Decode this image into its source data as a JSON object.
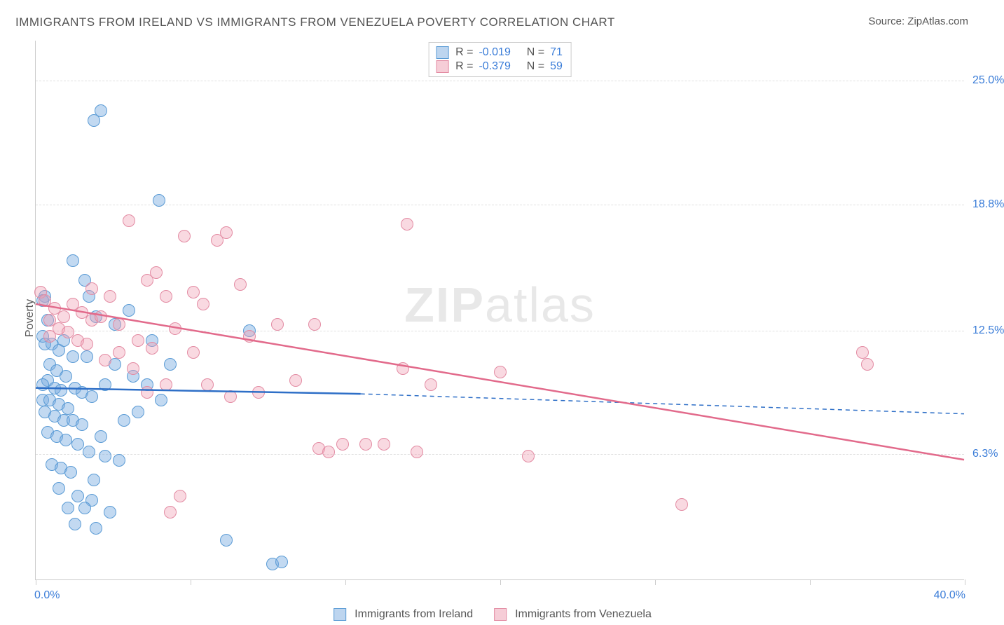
{
  "title": "IMMIGRANTS FROM IRELAND VS IMMIGRANTS FROM VENEZUELA POVERTY CORRELATION CHART",
  "source": "Source: ZipAtlas.com",
  "ylabel": "Poverty",
  "xaxis": {
    "min_label": "0.0%",
    "max_label": "40.0%",
    "min": 0,
    "max": 40
  },
  "yaxis": {
    "ticks": [
      {
        "v": 25.0,
        "label": "25.0%"
      },
      {
        "v": 18.8,
        "label": "18.8%"
      },
      {
        "v": 12.5,
        "label": "12.5%"
      },
      {
        "v": 6.3,
        "label": "6.3%"
      }
    ],
    "min": 0,
    "max": 27
  },
  "xtick_positions": [
    0,
    6.67,
    13.33,
    20,
    26.67,
    33.33,
    40
  ],
  "watermark": {
    "bold": "ZIP",
    "rest": "atlas"
  },
  "series": {
    "ireland": {
      "label": "Immigrants from Ireland",
      "color_fill": "rgba(120,170,225,0.45)",
      "color_stroke": "#5a9bd5",
      "swatch_fill": "#bdd5ef",
      "swatch_border": "#5a9bd5",
      "R": "-0.019",
      "N": "71",
      "regression": {
        "x1": 0,
        "y1": 9.6,
        "x2": 14,
        "y2": 9.3,
        "x2_dash": 40,
        "y2_dash": 8.3,
        "color": "#2e6fc7",
        "width": 2.5
      }
    },
    "venezuela": {
      "label": "Immigrants from Venezuela",
      "color_fill": "rgba(240,160,180,0.40)",
      "color_stroke": "#e38ba3",
      "swatch_fill": "#f6cdd7",
      "swatch_border": "#e38ba3",
      "R": "-0.379",
      "N": "59",
      "regression": {
        "x1": 0,
        "y1": 13.8,
        "x2": 40,
        "y2": 6.0,
        "color": "#e26a8b",
        "width": 2.5
      }
    }
  },
  "legend_top_labels": {
    "R": "R =",
    "N": "N ="
  },
  "point_radius": 9,
  "points_ireland": [
    [
      2.8,
      23.5
    ],
    [
      2.5,
      23.0
    ],
    [
      5.3,
      19.0
    ],
    [
      1.6,
      16.0
    ],
    [
      2.1,
      15.0
    ],
    [
      0.4,
      14.2
    ],
    [
      0.3,
      14.0
    ],
    [
      0.5,
      13.0
    ],
    [
      2.3,
      14.2
    ],
    [
      2.6,
      13.2
    ],
    [
      3.4,
      12.8
    ],
    [
      0.3,
      12.2
    ],
    [
      1.2,
      12.0
    ],
    [
      0.7,
      11.8
    ],
    [
      1.0,
      11.5
    ],
    [
      1.6,
      11.2
    ],
    [
      2.2,
      11.2
    ],
    [
      0.4,
      11.8
    ],
    [
      0.6,
      10.8
    ],
    [
      0.9,
      10.5
    ],
    [
      1.3,
      10.2
    ],
    [
      0.5,
      10.0
    ],
    [
      0.3,
      9.8
    ],
    [
      0.8,
      9.6
    ],
    [
      1.1,
      9.5
    ],
    [
      1.7,
      9.6
    ],
    [
      2.0,
      9.4
    ],
    [
      2.4,
      9.2
    ],
    [
      0.3,
      9.0
    ],
    [
      0.6,
      9.0
    ],
    [
      1.0,
      8.8
    ],
    [
      1.4,
      8.6
    ],
    [
      0.4,
      8.4
    ],
    [
      0.8,
      8.2
    ],
    [
      1.2,
      8.0
    ],
    [
      1.6,
      8.0
    ],
    [
      2.0,
      7.8
    ],
    [
      0.5,
      7.4
    ],
    [
      0.9,
      7.2
    ],
    [
      1.3,
      7.0
    ],
    [
      1.8,
      6.8
    ],
    [
      2.3,
      6.4
    ],
    [
      3.0,
      6.2
    ],
    [
      0.7,
      5.8
    ],
    [
      1.1,
      5.6
    ],
    [
      1.5,
      5.4
    ],
    [
      2.5,
      5.0
    ],
    [
      1.0,
      4.6
    ],
    [
      1.8,
      4.2
    ],
    [
      2.4,
      4.0
    ],
    [
      1.4,
      3.6
    ],
    [
      2.1,
      3.6
    ],
    [
      3.2,
      3.4
    ],
    [
      1.7,
      2.8
    ],
    [
      2.6,
      2.6
    ],
    [
      8.2,
      2.0
    ],
    [
      10.2,
      0.8
    ],
    [
      10.6,
      0.9
    ],
    [
      9.2,
      12.5
    ],
    [
      5.8,
      10.8
    ],
    [
      4.2,
      10.2
    ],
    [
      4.8,
      9.8
    ],
    [
      5.4,
      9.0
    ],
    [
      3.8,
      8.0
    ],
    [
      4.4,
      8.4
    ],
    [
      3.0,
      9.8
    ],
    [
      3.4,
      10.8
    ],
    [
      2.8,
      7.2
    ],
    [
      3.6,
      6.0
    ],
    [
      4.0,
      13.5
    ],
    [
      5.0,
      12.0
    ]
  ],
  "points_venezuela": [
    [
      0.2,
      14.4
    ],
    [
      0.4,
      14.0
    ],
    [
      0.8,
      13.6
    ],
    [
      1.2,
      13.2
    ],
    [
      0.6,
      13.0
    ],
    [
      1.6,
      13.8
    ],
    [
      2.0,
      13.4
    ],
    [
      2.4,
      13.0
    ],
    [
      1.0,
      12.6
    ],
    [
      1.4,
      12.4
    ],
    [
      1.8,
      12.0
    ],
    [
      2.2,
      11.8
    ],
    [
      2.8,
      13.2
    ],
    [
      3.2,
      14.2
    ],
    [
      3.6,
      12.8
    ],
    [
      4.0,
      18.0
    ],
    [
      4.4,
      12.0
    ],
    [
      4.8,
      15.0
    ],
    [
      5.2,
      15.4
    ],
    [
      5.0,
      11.6
    ],
    [
      5.6,
      14.2
    ],
    [
      6.0,
      12.6
    ],
    [
      6.4,
      17.2
    ],
    [
      6.8,
      11.4
    ],
    [
      7.2,
      13.8
    ],
    [
      7.4,
      9.8
    ],
    [
      7.8,
      17.0
    ],
    [
      8.2,
      17.4
    ],
    [
      8.4,
      9.2
    ],
    [
      8.8,
      14.8
    ],
    [
      9.2,
      12.2
    ],
    [
      9.6,
      9.4
    ],
    [
      10.4,
      12.8
    ],
    [
      11.2,
      10.0
    ],
    [
      12.0,
      12.8
    ],
    [
      12.2,
      6.6
    ],
    [
      12.6,
      6.4
    ],
    [
      13.2,
      6.8
    ],
    [
      14.2,
      6.8
    ],
    [
      16.0,
      17.8
    ],
    [
      15.8,
      10.6
    ],
    [
      15.0,
      6.8
    ],
    [
      16.4,
      6.4
    ],
    [
      17.0,
      9.8
    ],
    [
      20.0,
      10.4
    ],
    [
      21.2,
      6.2
    ],
    [
      27.8,
      3.8
    ],
    [
      35.6,
      11.4
    ],
    [
      35.8,
      10.8
    ],
    [
      5.8,
      3.4
    ],
    [
      3.0,
      11.0
    ],
    [
      3.6,
      11.4
    ],
    [
      4.2,
      10.6
    ],
    [
      4.8,
      9.4
    ],
    [
      5.6,
      9.8
    ],
    [
      6.2,
      4.2
    ],
    [
      0.6,
      12.2
    ],
    [
      2.4,
      14.6
    ],
    [
      6.8,
      14.4
    ]
  ]
}
